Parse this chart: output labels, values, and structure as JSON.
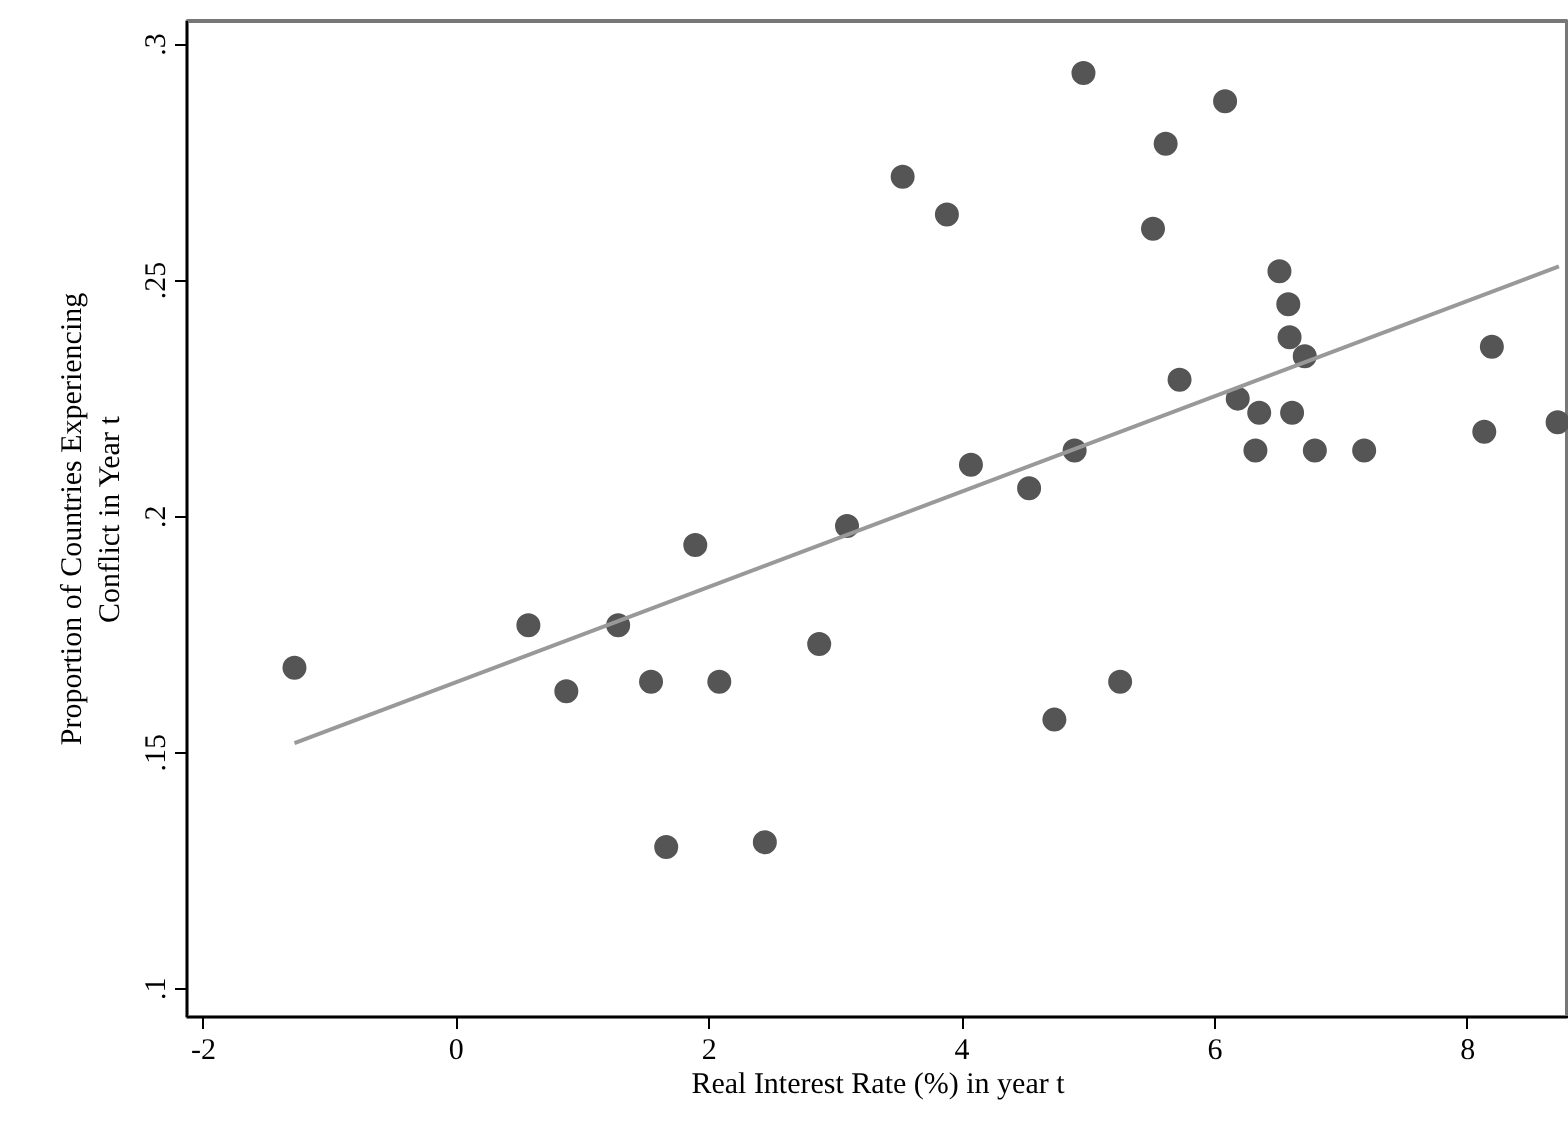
{
  "chart_data": {
    "type": "scatter",
    "xlabel": "Real Interest Rate (%) in year t",
    "ylabel": "Proportion of Countries Experiencing\nConflict in Year t",
    "xlim": [
      -2.13,
      8.8
    ],
    "ylim": [
      0.094,
      0.305
    ],
    "xticks": [
      -2,
      0,
      2,
      4,
      6,
      8
    ],
    "yticks": [
      {
        "value": 0.1,
        "label": ".1"
      },
      {
        "value": 0.15,
        "label": ".15"
      },
      {
        "value": 0.2,
        "label": ".2"
      },
      {
        "value": 0.25,
        "label": ".25"
      },
      {
        "value": 0.3,
        "label": ".3"
      }
    ],
    "grid": false,
    "series": [
      {
        "color": "#555555",
        "marker": "circle",
        "x": [
          -1.28,
          0.57,
          0.87,
          1.28,
          1.54,
          1.66,
          1.89,
          2.08,
          2.44,
          2.87,
          3.09,
          3.53,
          3.88,
          4.96,
          6.08,
          5.61,
          5.51,
          6.51,
          6.58,
          6.59,
          6.71,
          5.72,
          6.18,
          6.35,
          6.61,
          6.32,
          6.79,
          7.18,
          8.19,
          8.13,
          8.71,
          4.07,
          4.53,
          4.89,
          5.25,
          4.73
        ],
        "values": [
          0.168,
          0.177,
          0.163,
          0.177,
          0.165,
          0.13,
          0.194,
          0.165,
          0.131,
          0.173,
          0.198,
          0.272,
          0.264,
          0.294,
          0.288,
          0.279,
          0.261,
          0.252,
          0.245,
          0.238,
          0.234,
          0.229,
          0.225,
          0.222,
          0.222,
          0.214,
          0.214,
          0.214,
          0.236,
          0.218,
          0.22,
          0.211,
          0.206,
          0.214,
          0.165,
          0.157
        ]
      },
      {
        "type": "line",
        "color": "#999999",
        "line_style": "solid",
        "x": [
          -1.28,
          8.72
        ],
        "values": [
          0.152,
          0.253
        ]
      }
    ]
  }
}
